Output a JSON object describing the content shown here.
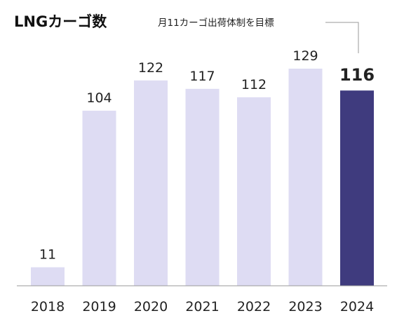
{
  "chart_data": {
    "type": "bar",
    "title": "LNGカーゴ数",
    "categories": [
      "2018",
      "2019",
      "2020",
      "2021",
      "2022",
      "2023",
      "2024"
    ],
    "values": [
      11,
      104,
      122,
      117,
      112,
      129,
      116
    ],
    "highlight_category": "2024",
    "annotation": "月11カーゴ出荷体制を目標",
    "xlabel": "",
    "ylabel": "",
    "ylim": [
      0,
      129
    ],
    "grid": false,
    "colors": {
      "bar": "#dedcf3",
      "highlight_bar": "#3f3b7e",
      "highlight_label": "#3f3b7e",
      "baseline": "#9a9a9a",
      "text": "#222222"
    }
  }
}
